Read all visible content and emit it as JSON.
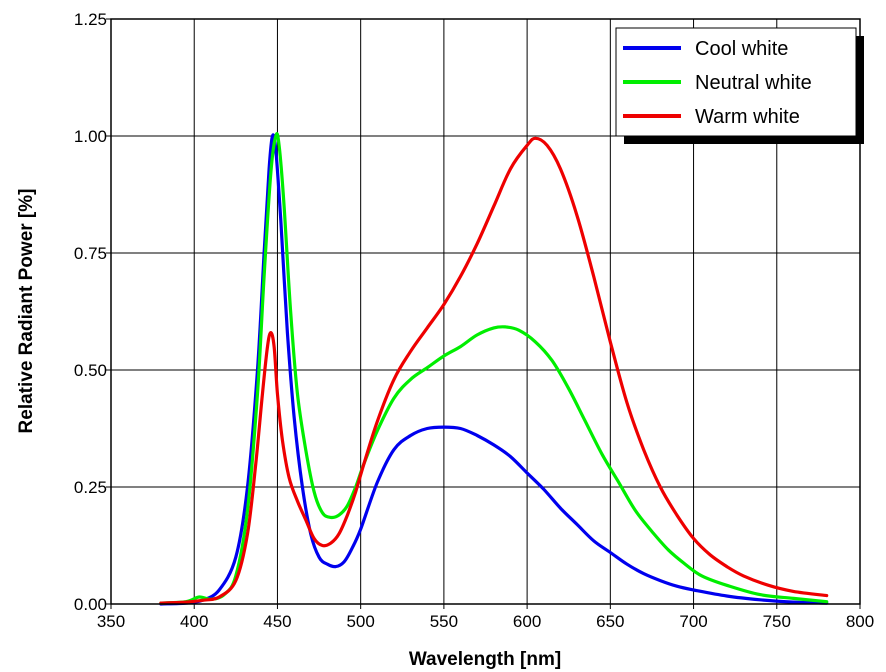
{
  "chart_data": {
    "type": "line",
    "title": "",
    "xlabel": "Wavelength [nm]",
    "ylabel": "Relative Radiant Power [%]",
    "xlim": [
      350,
      800
    ],
    "ylim": [
      0,
      1.25
    ],
    "x_ticks": [
      "350",
      "400",
      "450",
      "500",
      "550",
      "600",
      "650",
      "700",
      "750",
      "800"
    ],
    "y_ticks": [
      "0.00",
      "0.25",
      "0.50",
      "0.75",
      "1.00",
      "1.25"
    ],
    "grid": true,
    "legend_position": "top-right",
    "series": [
      {
        "name": "Cool white",
        "color": "#0000ee",
        "points": [
          [
            380,
            0.0
          ],
          [
            395,
            0.002
          ],
          [
            405,
            0.008
          ],
          [
            415,
            0.03
          ],
          [
            425,
            0.1
          ],
          [
            432,
            0.25
          ],
          [
            438,
            0.5
          ],
          [
            442,
            0.75
          ],
          [
            445,
            0.93
          ],
          [
            447,
            1.0
          ],
          [
            449,
            0.97
          ],
          [
            452,
            0.82
          ],
          [
            456,
            0.58
          ],
          [
            460,
            0.4
          ],
          [
            465,
            0.25
          ],
          [
            470,
            0.15
          ],
          [
            475,
            0.1
          ],
          [
            480,
            0.085
          ],
          [
            485,
            0.08
          ],
          [
            490,
            0.09
          ],
          [
            495,
            0.12
          ],
          [
            500,
            0.16
          ],
          [
            510,
            0.26
          ],
          [
            520,
            0.33
          ],
          [
            530,
            0.36
          ],
          [
            540,
            0.375
          ],
          [
            550,
            0.378
          ],
          [
            560,
            0.375
          ],
          [
            570,
            0.36
          ],
          [
            580,
            0.34
          ],
          [
            590,
            0.315
          ],
          [
            600,
            0.28
          ],
          [
            610,
            0.245
          ],
          [
            620,
            0.205
          ],
          [
            630,
            0.17
          ],
          [
            640,
            0.135
          ],
          [
            650,
            0.11
          ],
          [
            660,
            0.085
          ],
          [
            670,
            0.065
          ],
          [
            680,
            0.05
          ],
          [
            690,
            0.038
          ],
          [
            700,
            0.03
          ],
          [
            720,
            0.017
          ],
          [
            740,
            0.009
          ],
          [
            760,
            0.004
          ],
          [
            780,
            0.002
          ]
        ]
      },
      {
        "name": "Neutral white",
        "color": "#00ee00",
        "points": [
          [
            380,
            0.002
          ],
          [
            395,
            0.005
          ],
          [
            403,
            0.015
          ],
          [
            410,
            0.01
          ],
          [
            418,
            0.02
          ],
          [
            425,
            0.06
          ],
          [
            432,
            0.2
          ],
          [
            438,
            0.45
          ],
          [
            442,
            0.7
          ],
          [
            446,
            0.92
          ],
          [
            449,
            1.0
          ],
          [
            451,
            0.98
          ],
          [
            454,
            0.85
          ],
          [
            458,
            0.62
          ],
          [
            462,
            0.45
          ],
          [
            467,
            0.33
          ],
          [
            472,
            0.24
          ],
          [
            477,
            0.195
          ],
          [
            482,
            0.185
          ],
          [
            487,
            0.19
          ],
          [
            492,
            0.21
          ],
          [
            497,
            0.25
          ],
          [
            502,
            0.3
          ],
          [
            510,
            0.37
          ],
          [
            520,
            0.44
          ],
          [
            530,
            0.48
          ],
          [
            540,
            0.505
          ],
          [
            550,
            0.53
          ],
          [
            560,
            0.55
          ],
          [
            570,
            0.575
          ],
          [
            580,
            0.59
          ],
          [
            587,
            0.592
          ],
          [
            595,
            0.585
          ],
          [
            605,
            0.56
          ],
          [
            615,
            0.52
          ],
          [
            625,
            0.46
          ],
          [
            635,
            0.39
          ],
          [
            645,
            0.32
          ],
          [
            655,
            0.26
          ],
          [
            665,
            0.2
          ],
          [
            675,
            0.155
          ],
          [
            685,
            0.115
          ],
          [
            695,
            0.085
          ],
          [
            705,
            0.06
          ],
          [
            720,
            0.04
          ],
          [
            740,
            0.02
          ],
          [
            760,
            0.012
          ],
          [
            780,
            0.005
          ]
        ]
      },
      {
        "name": "Warm white",
        "color": "#ee0000",
        "points": [
          [
            380,
            0.002
          ],
          [
            395,
            0.004
          ],
          [
            405,
            0.008
          ],
          [
            415,
            0.015
          ],
          [
            425,
            0.05
          ],
          [
            432,
            0.15
          ],
          [
            437,
            0.3
          ],
          [
            441,
            0.45
          ],
          [
            444,
            0.55
          ],
          [
            446,
            0.58
          ],
          [
            448,
            0.55
          ],
          [
            450,
            0.45
          ],
          [
            453,
            0.35
          ],
          [
            457,
            0.27
          ],
          [
            462,
            0.22
          ],
          [
            467,
            0.18
          ],
          [
            472,
            0.14
          ],
          [
            477,
            0.125
          ],
          [
            482,
            0.13
          ],
          [
            487,
            0.15
          ],
          [
            492,
            0.19
          ],
          [
            497,
            0.24
          ],
          [
            502,
            0.3
          ],
          [
            510,
            0.39
          ],
          [
            520,
            0.48
          ],
          [
            530,
            0.54
          ],
          [
            540,
            0.59
          ],
          [
            550,
            0.64
          ],
          [
            560,
            0.7
          ],
          [
            570,
            0.77
          ],
          [
            580,
            0.85
          ],
          [
            590,
            0.93
          ],
          [
            600,
            0.98
          ],
          [
            605,
            0.995
          ],
          [
            612,
            0.98
          ],
          [
            620,
            0.93
          ],
          [
            630,
            0.83
          ],
          [
            640,
            0.7
          ],
          [
            650,
            0.56
          ],
          [
            660,
            0.43
          ],
          [
            670,
            0.33
          ],
          [
            680,
            0.25
          ],
          [
            690,
            0.19
          ],
          [
            700,
            0.14
          ],
          [
            710,
            0.105
          ],
          [
            720,
            0.08
          ],
          [
            730,
            0.06
          ],
          [
            745,
            0.04
          ],
          [
            760,
            0.027
          ],
          [
            780,
            0.018
          ]
        ]
      }
    ]
  }
}
